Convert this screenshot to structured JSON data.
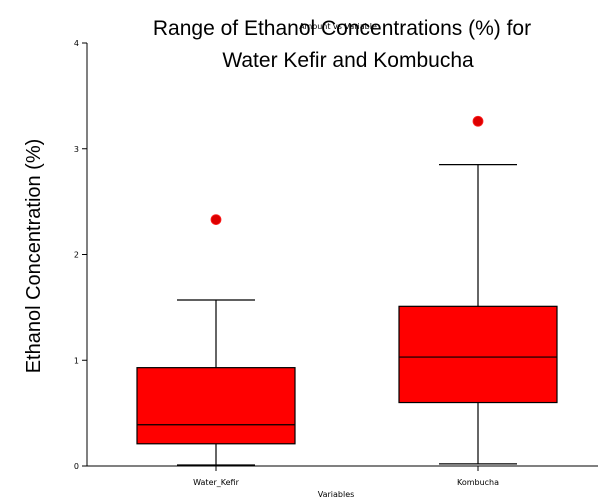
{
  "chart_data": {
    "type": "box",
    "title": "Range of Ethanol Concentrations (%) for Water Kefir and Kombucha",
    "title_lines": [
      "Range of Ethanol Concentrations (%) for",
      "Water Kefir and Kombucha"
    ],
    "inner_title": "Amount vs Variable",
    "xlabel": "Variables",
    "ylabel": "Ethanol Concentration (%)",
    "ylim": [
      0,
      4
    ],
    "yticks": [
      "0",
      "1",
      "2",
      "3",
      "4"
    ],
    "yticks_values": [
      0,
      1,
      2,
      3,
      4
    ],
    "categories": [
      "Water_Kefir",
      "Kombucha"
    ],
    "boxes": [
      {
        "name": "Water_Kefir",
        "min": 0.01,
        "q1": 0.21,
        "median": 0.39,
        "q3": 0.93,
        "max": 1.57,
        "outliers": [
          2.33
        ]
      },
      {
        "name": "Kombucha",
        "min": 0.02,
        "q1": 0.6,
        "median": 1.03,
        "q3": 1.51,
        "max": 2.85,
        "outliers": [
          3.26
        ]
      }
    ],
    "grid": false,
    "legend": "none",
    "colors": {
      "box_fill": "#ff0000",
      "outlier": "#dd0000",
      "line": "#000000"
    }
  }
}
